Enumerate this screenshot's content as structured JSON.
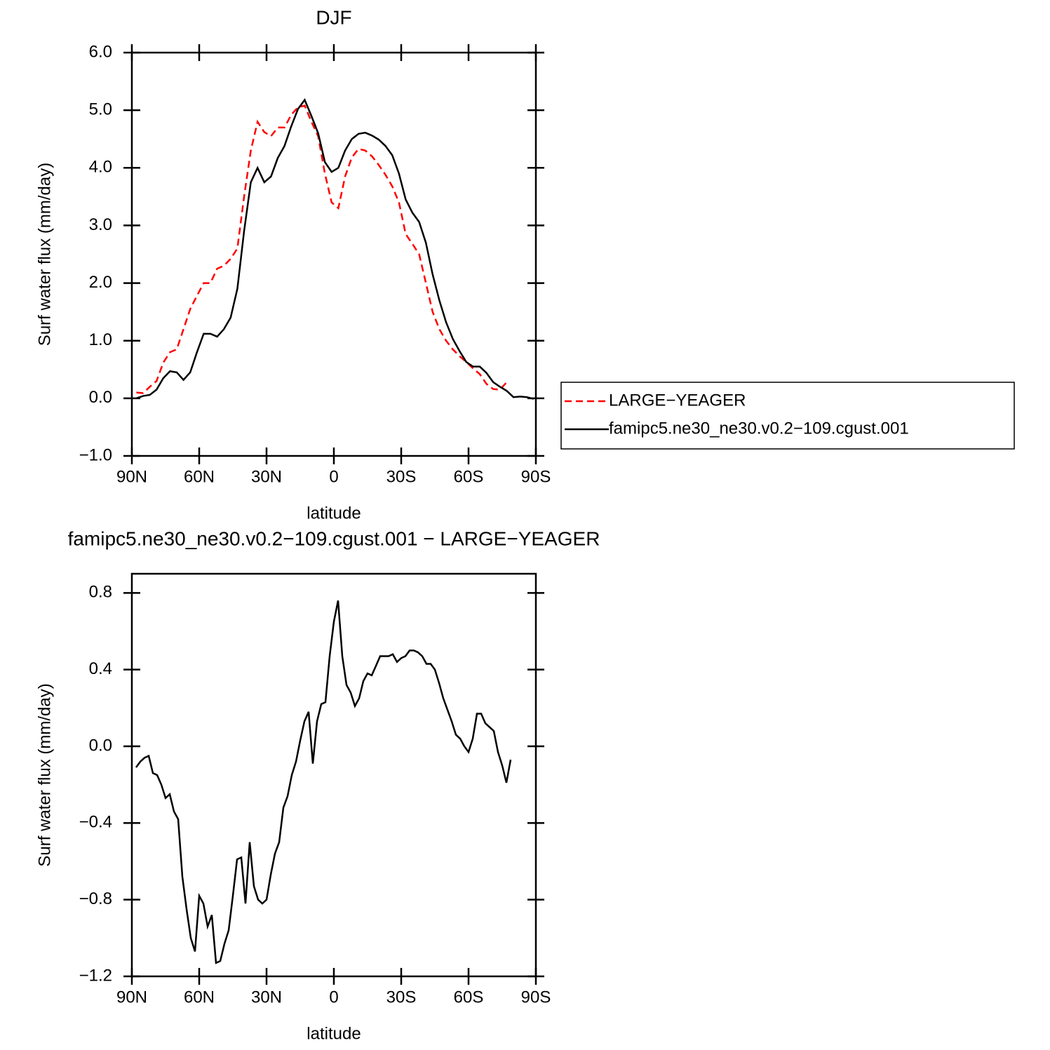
{
  "chart_data": [
    {
      "type": "line",
      "title": "DJF",
      "xlabel": "latitude",
      "ylabel": "Surf water flux (mm/day)",
      "x": [
        88,
        85,
        82,
        79,
        76,
        73,
        70,
        67,
        64,
        61,
        58,
        55,
        52,
        49,
        46,
        43,
        40,
        37,
        34,
        31,
        28,
        25,
        22,
        19,
        16,
        13,
        10,
        7,
        4,
        1,
        -2,
        -5,
        -8,
        -11,
        -14,
        -17,
        -20,
        -23,
        -26,
        -29,
        -32,
        -35,
        -38,
        -41,
        -44,
        -47,
        -50,
        -53,
        -56,
        -59,
        -62,
        -65,
        -68,
        -71,
        -74,
        -77,
        -80,
        -83,
        -86,
        -89
      ],
      "series": [
        {
          "name": "LARGE−YEAGER",
          "color": "#ff0000",
          "linestyle": "dashed",
          "values": [
            0.1,
            0.09,
            0.2,
            0.3,
            0.62,
            0.8,
            0.85,
            1.2,
            1.55,
            1.78,
            2.0,
            2.0,
            2.25,
            2.3,
            2.42,
            2.6,
            3.5,
            4.3,
            4.8,
            4.62,
            4.55,
            4.7,
            4.7,
            4.92,
            5.05,
            5.08,
            4.8,
            4.55,
            3.9,
            3.4,
            3.3,
            3.85,
            4.18,
            4.33,
            4.3,
            4.2,
            4.05,
            3.88,
            3.68,
            3.4,
            2.85,
            2.68,
            2.5,
            2.0,
            1.5,
            1.2,
            1.0,
            0.85,
            0.73,
            0.63,
            0.52,
            0.42,
            0.25,
            0.16,
            0.15,
            0.28,
            null,
            null,
            null,
            null
          ]
        },
        {
          "name": "famipc5.ne30_ne30.v0.2−109.cgust.001",
          "color": "#000000",
          "linestyle": "solid",
          "values": [
            0.0,
            0.04,
            0.06,
            0.15,
            0.35,
            0.47,
            0.45,
            0.32,
            0.45,
            0.8,
            1.12,
            1.12,
            1.07,
            1.2,
            1.4,
            1.9,
            2.9,
            3.75,
            4.0,
            3.75,
            3.85,
            4.17,
            4.38,
            4.72,
            5.02,
            5.18,
            4.9,
            4.6,
            4.1,
            3.93,
            4.0,
            4.3,
            4.5,
            4.59,
            4.61,
            4.56,
            4.49,
            4.38,
            4.22,
            3.9,
            3.45,
            3.22,
            3.06,
            2.7,
            2.15,
            1.7,
            1.32,
            1.03,
            0.82,
            0.63,
            0.55,
            0.55,
            0.44,
            0.28,
            0.2,
            0.13,
            0.02,
            0.03,
            0.02,
            -0.01
          ]
        }
      ],
      "xlim": [
        90,
        -90
      ],
      "xticks": [
        {
          "value": 90,
          "label": "90N"
        },
        {
          "value": 60,
          "label": "60N"
        },
        {
          "value": 30,
          "label": "30N"
        },
        0,
        {
          "value": -30,
          "label": "30S"
        },
        {
          "value": -60,
          "label": "60S"
        },
        {
          "value": -90,
          "label": "90S"
        }
      ],
      "ylim": [
        -1,
        6
      ],
      "yticks": [
        {
          "value": -1,
          "label": "−1.0"
        },
        {
          "value": 0,
          "label": "0.0"
        },
        {
          "value": 1,
          "label": "1.0"
        },
        {
          "value": 2,
          "label": "2.0"
        },
        {
          "value": 3,
          "label": "3.0"
        },
        {
          "value": 4,
          "label": "4.0"
        },
        {
          "value": 5,
          "label": "5.0"
        },
        {
          "value": 6,
          "label": "6.0"
        }
      ],
      "x_ticks_top": true,
      "legend": "right"
    },
    {
      "type": "line",
      "title": "famipc5.ne30_ne30.v0.2−109.cgust.001 − LARGE−YEAGER",
      "xlabel": "latitude",
      "ylabel": "Surf water flux (mm/day)",
      "x": [
        88.125,
        86.25,
        84.375,
        82.5,
        80.625,
        78.75,
        76.875,
        75,
        73.125,
        71.25,
        69.375,
        67.5,
        65.625,
        63.75,
        61.875,
        60,
        58.125,
        56.25,
        54.375,
        52.5,
        50.625,
        48.75,
        46.875,
        45,
        43.125,
        41.25,
        39.375,
        37.5,
        35.625,
        33.75,
        31.875,
        30,
        28.125,
        26.25,
        24.375,
        22.5,
        20.625,
        18.75,
        16.875,
        15,
        13.125,
        11.25,
        9.375,
        7.5,
        5.625,
        3.75,
        1.875,
        0,
        -1.875,
        -3.75,
        -5.625,
        -7.5,
        -9.375,
        -11.25,
        -13.125,
        -15,
        -16.875,
        -18.75,
        -20.625,
        -22.5,
        -24.375,
        -26.25,
        -28.125,
        -30,
        -31.875,
        -33.75,
        -35.625,
        -37.5,
        -39.375,
        -41.25,
        -43.125,
        -45,
        -46.875,
        -48.75,
        -50.625,
        -52.5,
        -54.375,
        -56.25,
        -58.125,
        -60,
        -61.875,
        -63.75,
        -65.625,
        -67.5,
        -69.375,
        -71.25,
        -73.125,
        -75,
        -76.875,
        -78.75
      ],
      "series": [
        {
          "color": "#000000",
          "linestyle": "solid",
          "values": [
            -0.11,
            -0.08,
            -0.06,
            -0.05,
            -0.14,
            -0.15,
            -0.2,
            -0.27,
            -0.25,
            -0.34,
            -0.38,
            -0.68,
            -0.85,
            -1.0,
            -1.07,
            -0.78,
            -0.82,
            -0.94,
            -0.88,
            -1.13,
            -1.12,
            -1.03,
            -0.96,
            -0.78,
            -0.59,
            -0.58,
            -0.82,
            -0.5,
            -0.73,
            -0.8,
            -0.82,
            -0.8,
            -0.67,
            -0.56,
            -0.5,
            -0.32,
            -0.26,
            -0.15,
            -0.08,
            0.03,
            0.13,
            0.18,
            -0.09,
            0.13,
            0.22,
            0.23,
            0.47,
            0.65,
            0.76,
            0.47,
            0.32,
            0.28,
            0.21,
            0.25,
            0.34,
            0.38,
            0.37,
            0.42,
            0.47,
            0.47,
            0.47,
            0.48,
            0.44,
            0.46,
            0.47,
            0.5,
            0.5,
            0.49,
            0.47,
            0.43,
            0.43,
            0.4,
            0.33,
            0.25,
            0.19,
            0.13,
            0.06,
            0.04,
            0.0,
            -0.03,
            0.04,
            0.17,
            0.17,
            0.12,
            0.1,
            0.08,
            -0.03,
            -0.1,
            -0.19,
            -0.07
          ]
        }
      ],
      "xlim": [
        90,
        -90
      ],
      "xticks": [
        {
          "value": 90,
          "label": "90N"
        },
        {
          "value": 60,
          "label": "60N"
        },
        {
          "value": 30,
          "label": "30N"
        },
        0,
        {
          "value": -30,
          "label": "30S"
        },
        {
          "value": -60,
          "label": "60S"
        },
        {
          "value": -90,
          "label": "90S"
        }
      ],
      "ylim": [
        -1.2,
        0.9
      ],
      "yticks": [
        {
          "value": -1.2,
          "label": "−1.2"
        },
        {
          "value": -0.8,
          "label": "−0.8"
        },
        {
          "value": -0.4,
          "label": "−0.4"
        },
        {
          "value": 0,
          "label": "0.0"
        },
        0.4,
        0.8
      ],
      "x_ticks_top": false
    }
  ]
}
